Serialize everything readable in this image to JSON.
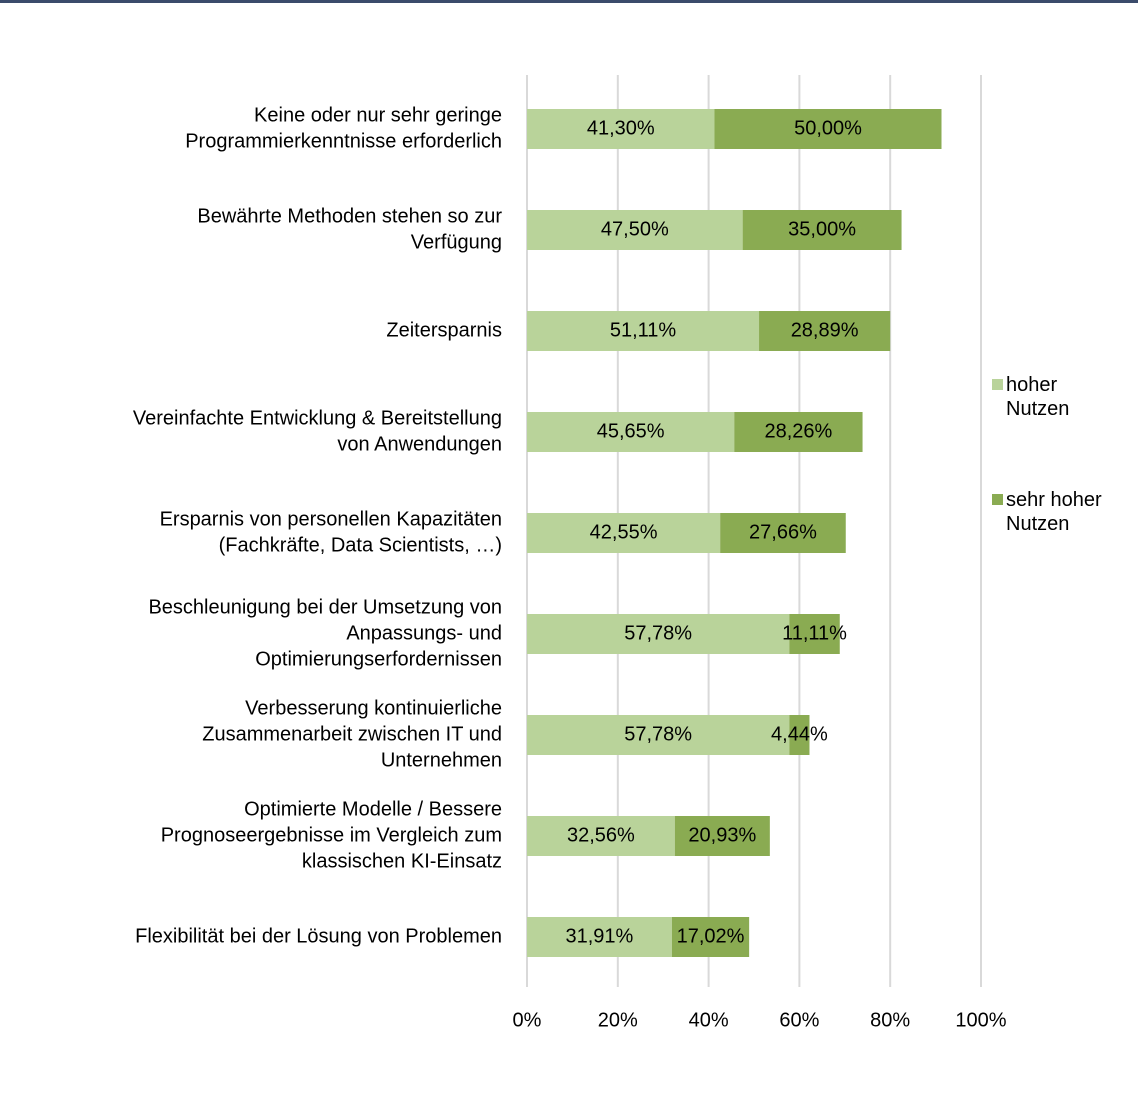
{
  "chart_data": {
    "type": "stacked-bar-horizontal",
    "categories": [
      [
        "Keine oder nur sehr geringe",
        "Programmierkenntnisse erforderlich"
      ],
      [
        "Bewährte Methoden stehen so zur",
        "Verfügung"
      ],
      [
        "Zeitersparnis"
      ],
      [
        "Vereinfachte Entwicklung & Bereitstellung",
        "von Anwendungen"
      ],
      [
        "Ersparnis von personellen Kapazitäten",
        "(Fachkräfte, Data Scientists, …)"
      ],
      [
        "Beschleunigung bei der Umsetzung von",
        "Anpassungs- und",
        "Optimierungserfordernissen"
      ],
      [
        "Verbesserung kontinuierliche",
        "Zusammenarbeit zwischen IT und",
        "Unternehmen"
      ],
      [
        "Optimierte Modelle / Bessere",
        "Prognoseergebnisse im Vergleich zum",
        "klassischen KI-Einsatz"
      ],
      [
        "Flexibilität bei der Lösung von Problemen"
      ]
    ],
    "series": [
      {
        "name": "hoher Nutzen",
        "color": "#b9d39a",
        "values": [
          41.3,
          47.5,
          51.11,
          45.65,
          42.55,
          57.78,
          57.78,
          32.56,
          31.91
        ],
        "value_labels": [
          "41,30%",
          "47,50%",
          "51,11%",
          "45,65%",
          "42,55%",
          "57,78%",
          "57,78%",
          "32,56%",
          "31,91%"
        ]
      },
      {
        "name": "sehr hoher Nutzen",
        "color": "#8aab52",
        "values": [
          50.0,
          35.0,
          28.89,
          28.26,
          27.66,
          11.11,
          4.44,
          20.93,
          17.02
        ],
        "value_labels": [
          "50,00%",
          "35,00%",
          "28,89%",
          "28,26%",
          "27,66%",
          "11,11%",
          "4,44%",
          "20,93%",
          "17,02%"
        ]
      }
    ],
    "xlim": [
      0,
      100
    ],
    "xticks": [
      {
        "value": 0,
        "label": "0%"
      },
      {
        "value": 20,
        "label": "20%"
      },
      {
        "value": 40,
        "label": "40%"
      },
      {
        "value": 60,
        "label": "60%"
      },
      {
        "value": 80,
        "label": "80%"
      },
      {
        "value": 100,
        "label": "100%"
      }
    ],
    "grid": true,
    "legend": "right"
  }
}
